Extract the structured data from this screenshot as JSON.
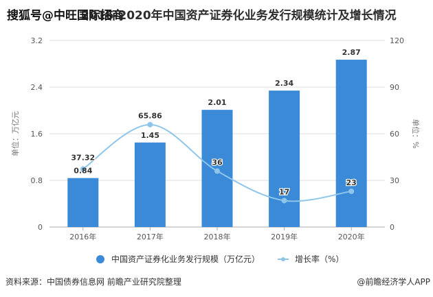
{
  "watermark_overlay": "搜狐号@中旺国际招商",
  "title": "2016-2020年中国资产证券化业务发行规模统计及增长情况",
  "left_axis_unit": "单位：万亿元",
  "right_axis_unit": "单位：%",
  "legend": {
    "bar_label": "中国资产证券化业务发行规模（万亿元）",
    "line_label": "增长率（%）"
  },
  "footer": {
    "source": "资料来源：中国债券信息网 前瞻产业研究院整理",
    "credit": "@前瞻经济学人APP"
  },
  "colors": {
    "bar": "#3a8ad8",
    "line": "#8ec5ea",
    "grid": "#dddddd"
  },
  "chart_data": {
    "type": "bar",
    "title": "2016-2020年中国资产证券化业务发行规模统计及增长情况",
    "categories": [
      "2016年",
      "2017年",
      "2018年",
      "2019年",
      "2020年"
    ],
    "series": [
      {
        "name": "中国资产证券化业务发行规模（万亿元）",
        "type": "bar",
        "axis": "left",
        "values": [
          0.84,
          1.45,
          2.01,
          2.34,
          2.87
        ],
        "labels": [
          "0.84",
          "1.45",
          "2.01",
          "2.34",
          "2.87"
        ]
      },
      {
        "name": "增长率（%）",
        "type": "line",
        "axis": "right",
        "smooth": true,
        "values": [
          37.32,
          65.86,
          36,
          17,
          23
        ],
        "labels": [
          "37.32",
          "65.86",
          "36",
          "17",
          "23"
        ]
      }
    ],
    "ylabel": "单位：万亿元",
    "ylabel_right": "单位：%",
    "ylim": [
      0,
      3.2
    ],
    "ylim_right": [
      0,
      120
    ],
    "yticks": [
      "0",
      "0.8",
      "1.6",
      "2.4",
      "3.2"
    ],
    "yticks_right": [
      "0",
      "30",
      "60",
      "90",
      "120"
    ],
    "grid": true,
    "legend_position": "bottom"
  }
}
